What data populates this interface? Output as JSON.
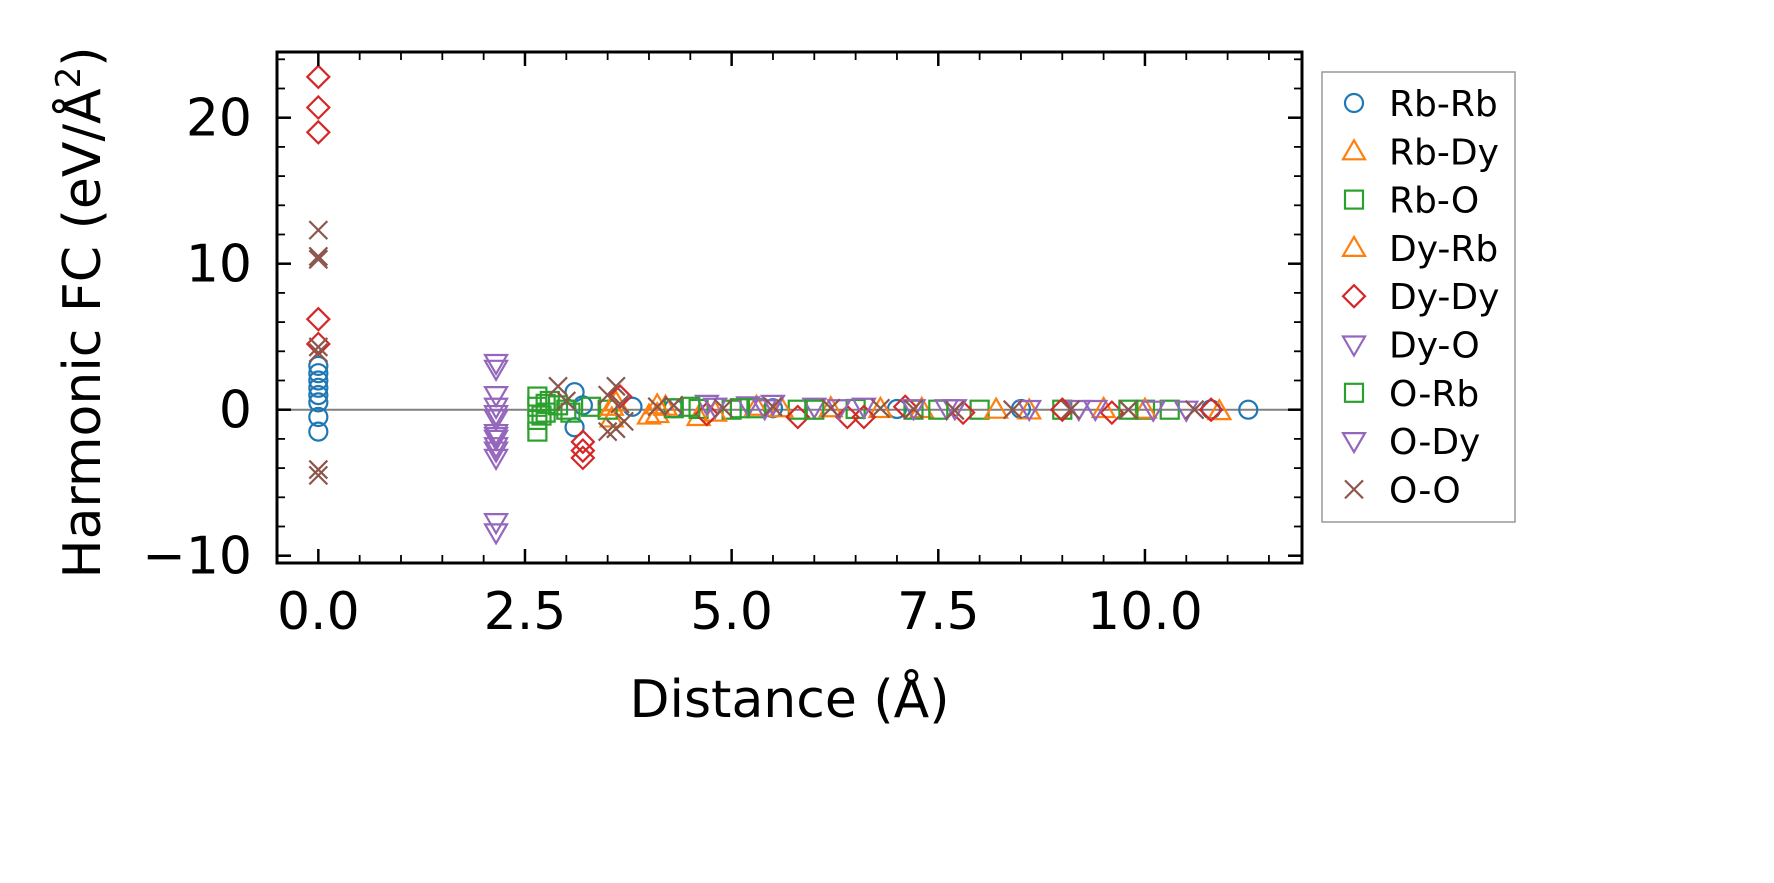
{
  "chart_data": {
    "type": "scatter",
    "xlabel": "Distance (Å)",
    "ylabel": "Harmonic FC (eV/Å",
    "ylabel_superscript": "2",
    "ylabel_close": ")",
    "xlim": [
      -0.5,
      11.9
    ],
    "ylim": [
      -10.5,
      24.5
    ],
    "x_ticks": [
      0.0,
      2.5,
      5.0,
      7.5,
      10.0
    ],
    "x_tick_labels": [
      "0.0",
      "2.5",
      "5.0",
      "7.5",
      "10.0"
    ],
    "y_ticks": [
      -10,
      0,
      10,
      20
    ],
    "y_tick_labels": [
      "−10",
      "0",
      "10",
      "20"
    ],
    "zero_line": true,
    "grid": false,
    "legend_position": "outside-right",
    "series": [
      {
        "name": "Rb-Rb",
        "marker": "circle",
        "color": "#1f77b4",
        "points": [
          [
            0,
            1.0
          ],
          [
            0,
            1.5
          ],
          [
            0,
            2.0
          ],
          [
            0,
            2.5
          ],
          [
            0,
            3.0
          ],
          [
            0,
            0.5
          ],
          [
            0,
            -0.5
          ],
          [
            0,
            -1.5
          ],
          [
            3.1,
            1.2
          ],
          [
            3.1,
            -1.2
          ],
          [
            3.2,
            0.3
          ],
          [
            3.8,
            0.2
          ],
          [
            4.3,
            0.1
          ],
          [
            5.5,
            0.1
          ],
          [
            7.0,
            0.05
          ],
          [
            8.5,
            0.05
          ],
          [
            10.8,
            0.02
          ],
          [
            11.25,
            0.0
          ]
        ]
      },
      {
        "name": "Rb-Dy",
        "marker": "triangle-up",
        "color": "#ff7f0e",
        "points": [
          [
            3.55,
            -0.6
          ],
          [
            3.6,
            0.5
          ],
          [
            4.1,
            -0.3
          ],
          [
            4.2,
            0.2
          ],
          [
            4.6,
            -0.5
          ],
          [
            5.3,
            0.2
          ],
          [
            6.2,
            0.1
          ],
          [
            7.3,
            0.05
          ],
          [
            8.6,
            -0.05
          ],
          [
            9.5,
            0.05
          ],
          [
            10.9,
            -0.1
          ]
        ]
      },
      {
        "name": "Rb-O",
        "marker": "square",
        "color": "#2ca02c",
        "points": [
          [
            2.65,
            -1.5
          ],
          [
            2.65,
            -0.7
          ],
          [
            2.65,
            0.2
          ],
          [
            2.65,
            0.9
          ],
          [
            2.75,
            0.4
          ],
          [
            2.75,
            -0.2
          ],
          [
            2.9,
            0.3
          ],
          [
            3.0,
            0.0
          ],
          [
            3.3,
            0.2
          ],
          [
            3.5,
            0.0
          ],
          [
            4.3,
            0.1
          ],
          [
            4.6,
            0.05
          ],
          [
            5.0,
            0.0
          ],
          [
            5.3,
            0.1
          ],
          [
            5.8,
            0.0
          ],
          [
            6.5,
            0.05
          ],
          [
            7.2,
            0.0
          ],
          [
            8.0,
            0.0
          ],
          [
            9.0,
            0.0
          ],
          [
            10.0,
            0.0
          ],
          [
            10.3,
            0.0
          ]
        ]
      },
      {
        "name": "Dy-Rb",
        "marker": "triangle-up",
        "color": "#ff7f0e",
        "points": [
          [
            3.55,
            0.2
          ],
          [
            4.0,
            -0.4
          ],
          [
            4.1,
            0.3
          ],
          [
            4.8,
            -0.2
          ],
          [
            5.6,
            0.1
          ],
          [
            6.8,
            0.05
          ],
          [
            8.2,
            0.0
          ],
          [
            10.0,
            0.0
          ]
        ]
      },
      {
        "name": "Dy-Dy",
        "marker": "diamond",
        "color": "#d62728",
        "points": [
          [
            0,
            22.8
          ],
          [
            0,
            20.7
          ],
          [
            0,
            19.0
          ],
          [
            0,
            6.2
          ],
          [
            0,
            4.5
          ],
          [
            3.2,
            -2.2
          ],
          [
            3.2,
            -2.8
          ],
          [
            3.2,
            -3.3
          ],
          [
            3.65,
            0.9
          ],
          [
            4.7,
            -0.3
          ],
          [
            5.8,
            -0.5
          ],
          [
            6.4,
            -0.5
          ],
          [
            6.6,
            -0.5
          ],
          [
            7.1,
            0.2
          ],
          [
            7.8,
            -0.2
          ],
          [
            9.0,
            0.0
          ],
          [
            9.6,
            -0.2
          ],
          [
            10.8,
            0.0
          ]
        ]
      },
      {
        "name": "Dy-O",
        "marker": "triangle-down",
        "color": "#9467bd",
        "points": [
          [
            2.15,
            3.2
          ],
          [
            2.15,
            2.8
          ],
          [
            2.15,
            1.0
          ],
          [
            2.15,
            0.2
          ],
          [
            2.15,
            -0.6
          ],
          [
            2.15,
            -1.6
          ],
          [
            2.15,
            -2.0
          ],
          [
            2.15,
            -2.8
          ],
          [
            2.15,
            -3.3
          ],
          [
            2.15,
            -7.7
          ],
          [
            2.15,
            -8.4
          ],
          [
            4.7,
            0.4
          ],
          [
            5.2,
            0.3
          ],
          [
            5.5,
            0.4
          ],
          [
            6.0,
            0.2
          ],
          [
            6.6,
            0.2
          ],
          [
            7.2,
            0.1
          ],
          [
            7.7,
            0.1
          ],
          [
            8.6,
            0.05
          ],
          [
            9.4,
            0.05
          ],
          [
            10.5,
            0.0
          ]
        ]
      },
      {
        "name": "O-Rb",
        "marker": "square",
        "color": "#2ca02c",
        "points": [
          [
            2.7,
            -0.4
          ],
          [
            2.8,
            0.6
          ],
          [
            3.05,
            -0.2
          ],
          [
            4.5,
            0.2
          ],
          [
            5.1,
            0.1
          ],
          [
            6.0,
            0.0
          ],
          [
            7.5,
            0.0
          ],
          [
            9.8,
            0.0
          ]
        ]
      },
      {
        "name": "O-Dy",
        "marker": "triangle-down",
        "color": "#9467bd",
        "points": [
          [
            2.15,
            -1.8
          ],
          [
            2.15,
            -2.5
          ],
          [
            2.15,
            -0.3
          ],
          [
            4.8,
            0.2
          ],
          [
            5.4,
            0.1
          ],
          [
            6.3,
            0.1
          ],
          [
            7.6,
            0.1
          ],
          [
            9.2,
            0.05
          ],
          [
            10.1,
            0.0
          ]
        ]
      },
      {
        "name": "O-O",
        "marker": "x",
        "color": "#8c564b",
        "points": [
          [
            0,
            12.3
          ],
          [
            0,
            10.5
          ],
          [
            0,
            10.3
          ],
          [
            0,
            4.3
          ],
          [
            0,
            3.9
          ],
          [
            0,
            -4.1
          ],
          [
            0,
            -4.5
          ],
          [
            2.9,
            1.6
          ],
          [
            3.0,
            0.6
          ],
          [
            3.5,
            1.0
          ],
          [
            3.5,
            -1.5
          ],
          [
            3.6,
            1.6
          ],
          [
            3.6,
            -1.3
          ],
          [
            3.65,
            0.4
          ],
          [
            3.7,
            -0.8
          ],
          [
            4.1,
            0.2
          ],
          [
            4.3,
            0.3
          ],
          [
            4.9,
            0.1
          ],
          [
            5.5,
            0.2
          ],
          [
            6.2,
            0.1
          ],
          [
            6.8,
            0.1
          ],
          [
            7.2,
            0.05
          ],
          [
            7.7,
            -0.05
          ],
          [
            8.4,
            0.0
          ],
          [
            9.1,
            0.0
          ],
          [
            9.8,
            0.0
          ],
          [
            10.6,
            0.0
          ]
        ]
      }
    ]
  }
}
